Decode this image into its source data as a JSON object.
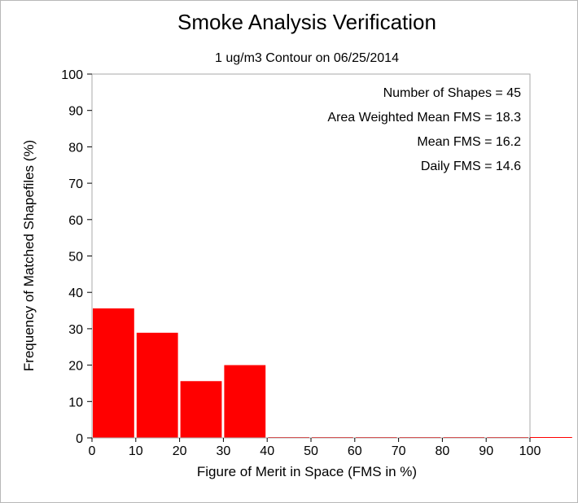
{
  "chart_data": {
    "type": "bar",
    "title": "Smoke Analysis Verification",
    "subtitle": "1 ug/m3 Contour on 06/25/2014",
    "xlabel": "Figure of Merit in Space (FMS in %)",
    "ylabel": "Frequency of Matched Shapefiles (%)",
    "xlim": [
      0,
      100
    ],
    "ylim": [
      0,
      100
    ],
    "xticks": [
      0,
      10,
      20,
      30,
      40,
      50,
      60,
      70,
      80,
      90,
      100
    ],
    "yticks": [
      0,
      10,
      20,
      30,
      40,
      50,
      60,
      70,
      80,
      90,
      100
    ],
    "bin_width": 10,
    "bins": [
      0,
      10,
      20,
      30,
      40,
      50,
      60,
      70,
      80,
      90,
      100
    ],
    "values": [
      35.6,
      28.9,
      15.6,
      20.0,
      0,
      0,
      0,
      0,
      0,
      0,
      0
    ],
    "bar_color": "#ff0000",
    "grid": false,
    "stats": [
      "Number of Shapes = 45",
      "Area Weighted Mean FMS = 18.3",
      "Mean FMS = 16.2",
      "Daily FMS = 14.6"
    ]
  }
}
